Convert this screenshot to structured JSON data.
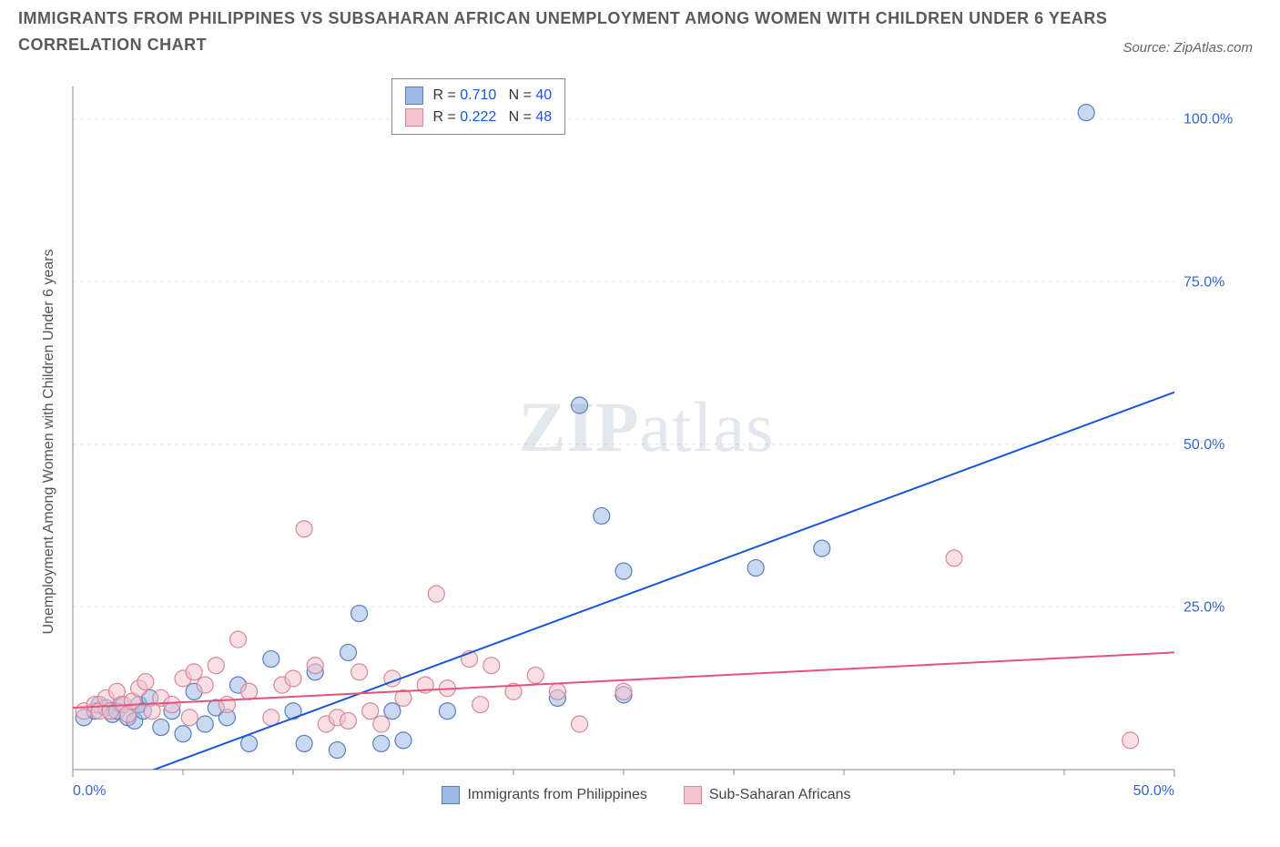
{
  "title_line1": "IMMIGRANTS FROM PHILIPPINES VS SUBSAHARAN AFRICAN UNEMPLOYMENT AMONG WOMEN WITH CHILDREN UNDER 6 YEARS",
  "title_line2": "CORRELATION CHART",
  "source_label": "Source: ZipAtlas.com",
  "y_axis_label": "Unemployment Among Women with Children Under 6 years",
  "watermark_zip": "ZIP",
  "watermark_atlas": "atlas",
  "chart": {
    "type": "scatter",
    "xlim": [
      0,
      50
    ],
    "ylim": [
      0,
      105
    ],
    "x_ticks": [
      0,
      50
    ],
    "x_tick_labels": [
      "0.0%",
      "50.0%"
    ],
    "x_minor_ticks": [
      5,
      10,
      15,
      20,
      25,
      30,
      35,
      40,
      45
    ],
    "y_ticks": [
      25,
      50,
      75,
      100
    ],
    "y_tick_labels": [
      "25.0%",
      "50.0%",
      "75.0%",
      "100.0%"
    ],
    "background_color": "#ffffff",
    "grid_color": "#e5e5e5",
    "axis_color": "#888888",
    "tick_font_size": 16,
    "tick_color_x": "#3366cc",
    "tick_color_y": "#3366cc",
    "series": [
      {
        "name": "Immigrants from Philippines",
        "marker_color": "#9db9e6",
        "marker_border": "#5a7fb8",
        "marker_opacity": 0.55,
        "marker_radius": 9,
        "line_color": "#1a56db",
        "line_width": 2,
        "r": "0.710",
        "n": "40",
        "regression": {
          "x0": 0.5,
          "y0": -4,
          "x1": 50,
          "y1": 58
        },
        "points": [
          [
            0.5,
            8
          ],
          [
            1,
            9
          ],
          [
            1.2,
            10
          ],
          [
            1.5,
            9.5
          ],
          [
            1.8,
            8.5
          ],
          [
            2,
            9
          ],
          [
            2.2,
            10
          ],
          [
            2.5,
            8
          ],
          [
            2.8,
            7.5
          ],
          [
            3,
            10
          ],
          [
            3.2,
            9
          ],
          [
            3.5,
            11
          ],
          [
            4,
            6.5
          ],
          [
            4.5,
            9
          ],
          [
            5,
            5.5
          ],
          [
            5.5,
            12
          ],
          [
            6,
            7
          ],
          [
            6.5,
            9.5
          ],
          [
            7,
            8
          ],
          [
            7.5,
            13
          ],
          [
            8,
            4
          ],
          [
            9,
            17
          ],
          [
            10,
            9
          ],
          [
            10.5,
            4
          ],
          [
            11,
            15
          ],
          [
            12,
            3
          ],
          [
            12.5,
            18
          ],
          [
            13,
            24
          ],
          [
            14,
            4
          ],
          [
            14.5,
            9
          ],
          [
            15,
            4.5
          ],
          [
            17,
            9
          ],
          [
            22,
            11
          ],
          [
            23,
            56
          ],
          [
            24,
            39
          ],
          [
            25,
            30.5
          ],
          [
            25,
            11.5
          ],
          [
            31,
            31
          ],
          [
            34,
            34
          ],
          [
            46,
            101
          ]
        ]
      },
      {
        "name": "Sub-Saharan Africans",
        "marker_color": "#f4c2cd",
        "marker_border": "#d6899a",
        "marker_opacity": 0.55,
        "marker_radius": 9,
        "line_color": "#e6537a",
        "line_width": 2,
        "r": "0.222",
        "n": "48",
        "regression": {
          "x0": 0,
          "y0": 9.5,
          "x1": 50,
          "y1": 18
        },
        "points": [
          [
            0.5,
            9
          ],
          [
            1,
            10
          ],
          [
            1.2,
            9
          ],
          [
            1.5,
            11
          ],
          [
            1.7,
            9
          ],
          [
            2,
            12
          ],
          [
            2.3,
            10
          ],
          [
            2.5,
            8.5
          ],
          [
            2.7,
            10.5
          ],
          [
            3,
            12.5
          ],
          [
            3.3,
            13.5
          ],
          [
            3.6,
            9
          ],
          [
            4,
            11
          ],
          [
            4.5,
            10
          ],
          [
            5,
            14
          ],
          [
            5.3,
            8
          ],
          [
            5.5,
            15
          ],
          [
            6,
            13
          ],
          [
            6.5,
            16
          ],
          [
            7,
            10
          ],
          [
            7.5,
            20
          ],
          [
            8,
            12
          ],
          [
            9,
            8
          ],
          [
            9.5,
            13
          ],
          [
            10,
            14
          ],
          [
            10.5,
            37
          ],
          [
            11,
            16
          ],
          [
            11.5,
            7
          ],
          [
            12,
            8
          ],
          [
            12.5,
            7.5
          ],
          [
            13,
            15
          ],
          [
            13.5,
            9
          ],
          [
            14,
            7
          ],
          [
            14.5,
            14
          ],
          [
            15,
            11
          ],
          [
            16,
            13
          ],
          [
            16.5,
            27
          ],
          [
            17,
            12.5
          ],
          [
            18,
            17
          ],
          [
            18.5,
            10
          ],
          [
            19,
            16
          ],
          [
            20,
            12
          ],
          [
            21,
            14.5
          ],
          [
            22,
            12
          ],
          [
            23,
            7
          ],
          [
            25,
            12
          ],
          [
            40,
            32.5
          ],
          [
            48,
            4.5
          ]
        ]
      }
    ],
    "legend_box": {
      "prefix_r": "R = ",
      "prefix_n": "N = ",
      "value_color": "#1a56db"
    },
    "bottom_legend": [
      {
        "label": "Immigrants from Philippines",
        "swatch": "#9db9e6",
        "border": "#5a7fb8"
      },
      {
        "label": "Sub-Saharan Africans",
        "swatch": "#f4c2cd",
        "border": "#d6899a"
      }
    ]
  }
}
